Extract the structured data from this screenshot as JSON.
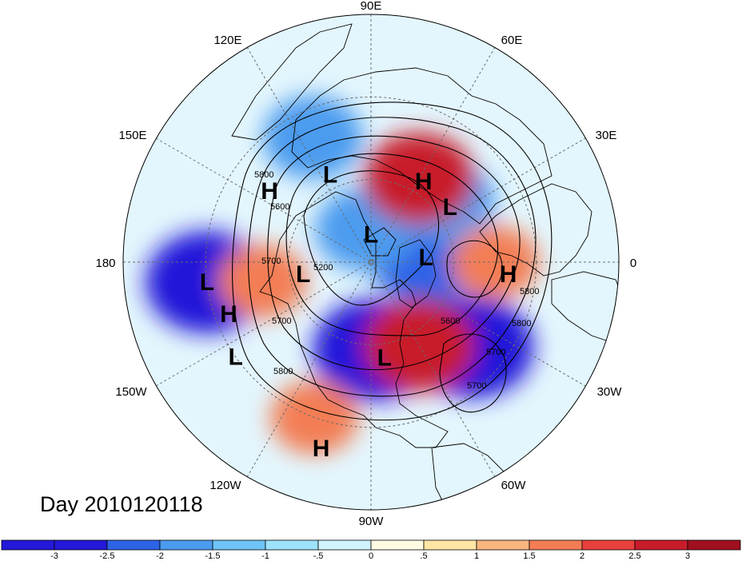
{
  "map": {
    "day_label": "Day 2010120118",
    "longitude_labels": [
      "90E",
      "60E",
      "30E",
      "0",
      "30W",
      "60W",
      "90W",
      "120W",
      "150W",
      "180",
      "150E",
      "120E"
    ],
    "pressure_centers": [
      {
        "type": "L",
        "lat": 55,
        "lon": 115
      },
      {
        "type": "L",
        "lat": 30,
        "lon": -173
      },
      {
        "type": "L",
        "lat": 80,
        "lon": 90
      },
      {
        "type": "L",
        "lat": 65,
        "lon": -170
      },
      {
        "type": "L",
        "lat": 70,
        "lon": 5
      },
      {
        "type": "L",
        "lat": 55,
        "lon": -82
      },
      {
        "type": "L",
        "lat": 30,
        "lon": -145
      },
      {
        "type": "L",
        "lat": 55,
        "lon": 35
      },
      {
        "type": "H",
        "lat": 55,
        "lon": 57
      },
      {
        "type": "H",
        "lat": 45,
        "lon": 145
      },
      {
        "type": "H",
        "lat": 35,
        "lon": -160
      },
      {
        "type": "H",
        "lat": 40,
        "lon": -5
      },
      {
        "type": "H",
        "lat": 20,
        "lon": -105
      }
    ],
    "contour_labels": [
      "5800",
      "5600",
      "5700",
      "5200",
      "5700",
      "5800",
      "5600",
      "5800",
      "5800",
      "5700",
      "5700"
    ]
  },
  "colorbar": {
    "ticks": [
      "-3",
      "-2.5",
      "-2",
      "-1.5",
      "-1",
      "-.5",
      "0",
      ".5",
      "1",
      "1.5",
      "2",
      "2.5",
      "3"
    ],
    "colors": [
      "#2418d9",
      "#2d63e6",
      "#4b9bef",
      "#6fc3f6",
      "#9ee3fb",
      "#cff3fd",
      "#fffbe3",
      "#ffe6a5",
      "#f9b57e",
      "#f37e55",
      "#e8403c",
      "#c81c2b",
      "#a0101f"
    ]
  },
  "anomaly_field": [
    {
      "lat": 30,
      "lon": -173,
      "value": -3
    },
    {
      "lat": 58,
      "lon": -88,
      "value": -3
    },
    {
      "lat": 42,
      "lon": -40,
      "value": -3
    },
    {
      "lat": 70,
      "lon": 5,
      "value": -2.5
    },
    {
      "lat": 78,
      "lon": 100,
      "value": -2
    },
    {
      "lat": 55,
      "lon": 40,
      "value": -2
    },
    {
      "lat": 40,
      "lon": 115,
      "value": -2
    },
    {
      "lat": 55,
      "lon": -60,
      "value": 2.5
    },
    {
      "lat": 55,
      "lon": 60,
      "value": 2.5
    },
    {
      "lat": 50,
      "lon": -170,
      "value": 1.5
    },
    {
      "lat": 45,
      "lon": 0,
      "value": 1.5
    },
    {
      "lat": 30,
      "lon": -110,
      "value": 1.5
    }
  ]
}
